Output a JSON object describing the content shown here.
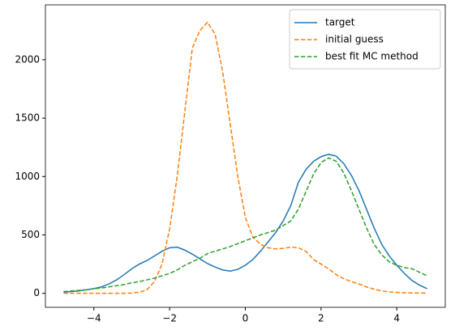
{
  "chart_data": {
    "type": "line",
    "x": [
      -4.8,
      -4.6,
      -4.4,
      -4.2,
      -4,
      -3.8,
      -3.6,
      -3.4,
      -3.2,
      -3,
      -2.8,
      -2.6,
      -2.4,
      -2.2,
      -2,
      -1.8,
      -1.6,
      -1.4,
      -1.2,
      -1,
      -0.8,
      -0.6,
      -0.4,
      -0.2,
      0,
      0.2,
      0.4,
      0.6,
      0.8,
      1,
      1.2,
      1.4,
      1.6,
      1.8,
      2,
      2.2,
      2.4,
      2.6,
      2.8,
      3,
      3.2,
      3.4,
      3.6,
      3.8,
      4,
      4.2,
      4.4,
      4.6,
      4.8
    ],
    "series": [
      {
        "name": "target",
        "color": "#1f77b4",
        "linestyle": "solid",
        "values": [
          10,
          15,
          20,
          30,
          40,
          55,
          80,
          115,
          160,
          210,
          250,
          280,
          320,
          360,
          390,
          395,
          370,
          335,
          295,
          255,
          225,
          200,
          190,
          205,
          240,
          290,
          360,
          440,
          520,
          620,
          750,
          950,
          1060,
          1130,
          1170,
          1190,
          1175,
          1110,
          1010,
          880,
          720,
          560,
          420,
          320,
          240,
          170,
          110,
          70,
          40
        ]
      },
      {
        "name": "initial guess",
        "color": "#ff7f0e",
        "linestyle": "dashed",
        "values": [
          0,
          0,
          0,
          0,
          0,
          0,
          0,
          0,
          0,
          2,
          10,
          30,
          100,
          250,
          550,
          1000,
          1550,
          2100,
          2250,
          2320,
          2220,
          1900,
          1450,
          1000,
          650,
          480,
          420,
          390,
          380,
          385,
          395,
          390,
          360,
          290,
          250,
          210,
          160,
          125,
          100,
          80,
          55,
          35,
          20,
          12,
          8,
          5,
          3,
          2,
          2
        ]
      },
      {
        "name": "best fit MC method",
        "color": "#2ca02c",
        "linestyle": "dashed",
        "values": [
          15,
          20,
          25,
          30,
          40,
          45,
          55,
          65,
          75,
          90,
          100,
          115,
          130,
          150,
          170,
          200,
          240,
          270,
          300,
          340,
          360,
          380,
          400,
          425,
          450,
          475,
          500,
          520,
          540,
          580,
          620,
          720,
          870,
          1020,
          1120,
          1160,
          1130,
          1030,
          880,
          720,
          560,
          420,
          330,
          270,
          240,
          220,
          210,
          180,
          150
        ]
      }
    ],
    "xlim": [
      -5.28,
      5.28
    ],
    "ylim": [
      -120,
      2470
    ],
    "xticks": [
      {
        "value": -4,
        "label": "−4"
      },
      {
        "value": -2,
        "label": "−2"
      },
      0,
      2,
      4
    ],
    "yticks": [
      0,
      500,
      1000,
      1500,
      2000
    ],
    "grid": false,
    "legend": "upper right"
  }
}
